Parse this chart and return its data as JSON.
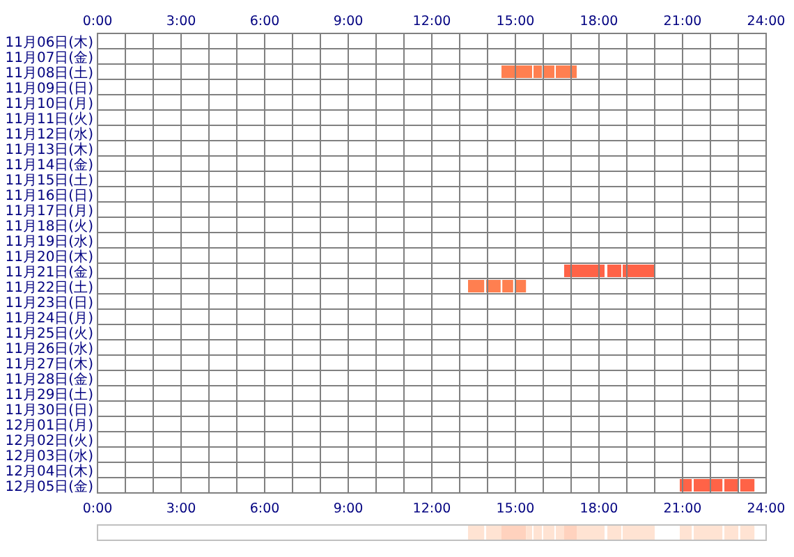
{
  "chart_data": [
    {
      "type": "bar",
      "orientation": "horizontal",
      "grid": true,
      "categories": [
        "11月06日(木)",
        "11月07日(金)",
        "11月08日(土)",
        "11月09日(日)",
        "11月10日(月)",
        "11月11日(火)",
        "11月12日(水)",
        "11月13日(木)",
        "11月14日(金)",
        "11月15日(土)",
        "11月16日(日)",
        "11月17日(月)",
        "11月18日(火)",
        "11月19日(水)",
        "11月20日(木)",
        "11月21日(金)",
        "11月22日(土)",
        "11月23日(日)",
        "11月24日(月)",
        "11月25日(火)",
        "11月26日(水)",
        "11月27日(木)",
        "11月28日(金)",
        "11月29日(土)",
        "11月30日(日)",
        "12月01日(月)",
        "12月02日(火)",
        "12月03日(水)",
        "12月04日(木)",
        "12月05日(金)"
      ],
      "series": [
        {
          "base": [
            null,
            null,
            14.5,
            null,
            null,
            null,
            null,
            null,
            null,
            null,
            null,
            null,
            null,
            null,
            null,
            16.75,
            13.3,
            null,
            null,
            null,
            null,
            null,
            null,
            null,
            null,
            null,
            null,
            null,
            null,
            20.9
          ],
          "values": [
            null,
            null,
            1.1,
            null,
            null,
            null,
            null,
            null,
            null,
            null,
            null,
            null,
            null,
            null,
            null,
            1.45,
            0.58,
            null,
            null,
            null,
            null,
            null,
            null,
            null,
            null,
            null,
            null,
            null,
            null,
            0.43
          ],
          "colors": [
            null,
            null,
            "#ff7f50",
            null,
            null,
            null,
            null,
            null,
            null,
            null,
            null,
            null,
            null,
            null,
            null,
            "#ff6347",
            "#ff7f50",
            null,
            null,
            null,
            null,
            null,
            null,
            null,
            null,
            null,
            null,
            null,
            null,
            "#ff6347"
          ]
        },
        {
          "base": [
            null,
            null,
            15.65,
            null,
            null,
            null,
            null,
            null,
            null,
            null,
            null,
            null,
            null,
            null,
            null,
            18.3,
            13.95,
            null,
            null,
            null,
            null,
            null,
            null,
            null,
            null,
            null,
            null,
            null,
            null,
            21.4
          ],
          "values": [
            null,
            null,
            0.3,
            null,
            null,
            null,
            null,
            null,
            null,
            null,
            null,
            null,
            null,
            null,
            null,
            0.5,
            0.52,
            null,
            null,
            null,
            null,
            null,
            null,
            null,
            null,
            null,
            null,
            null,
            null,
            1.03
          ],
          "colors": [
            null,
            null,
            "#ff7f50",
            null,
            null,
            null,
            null,
            null,
            null,
            null,
            null,
            null,
            null,
            null,
            null,
            "#ff6347",
            "#ff7f50",
            null,
            null,
            null,
            null,
            null,
            null,
            null,
            null,
            null,
            null,
            null,
            null,
            "#ff6347"
          ]
        },
        {
          "base": [
            null,
            null,
            16.0,
            null,
            null,
            null,
            null,
            null,
            null,
            null,
            null,
            null,
            null,
            null,
            null,
            18.85,
            14.53,
            null,
            null,
            null,
            null,
            null,
            null,
            null,
            null,
            null,
            null,
            null,
            null,
            22.5
          ],
          "values": [
            null,
            null,
            0.4,
            null,
            null,
            null,
            null,
            null,
            null,
            null,
            null,
            null,
            null,
            null,
            null,
            1.15,
            0.39,
            null,
            null,
            null,
            null,
            null,
            null,
            null,
            null,
            null,
            null,
            null,
            null,
            0.5
          ],
          "colors": [
            null,
            null,
            "#ff7f50",
            null,
            null,
            null,
            null,
            null,
            null,
            null,
            null,
            null,
            null,
            null,
            null,
            "#ff6347",
            "#ff7f50",
            null,
            null,
            null,
            null,
            null,
            null,
            null,
            null,
            null,
            null,
            null,
            null,
            "#ff6347"
          ]
        },
        {
          "base": [
            null,
            null,
            16.45,
            null,
            null,
            null,
            null,
            null,
            null,
            null,
            null,
            null,
            null,
            null,
            null,
            null,
            15.0,
            null,
            null,
            null,
            null,
            null,
            null,
            null,
            null,
            null,
            null,
            null,
            null,
            23.07
          ],
          "values": [
            null,
            null,
            0.75,
            null,
            null,
            null,
            null,
            null,
            null,
            null,
            null,
            null,
            null,
            null,
            null,
            null,
            0.38,
            null,
            null,
            null,
            null,
            null,
            null,
            null,
            null,
            null,
            null,
            null,
            null,
            0.51
          ],
          "colors": [
            null,
            null,
            "#ff7f50",
            null,
            null,
            null,
            null,
            null,
            null,
            null,
            null,
            null,
            null,
            null,
            null,
            null,
            "#ff7f50",
            null,
            null,
            null,
            null,
            null,
            null,
            null,
            null,
            null,
            null,
            null,
            null,
            "#ff6347"
          ]
        }
      ],
      "xlim": [
        0,
        24
      ],
      "xticks": [
        {
          "value": 0,
          "label": "0:00"
        },
        {
          "value": 3,
          "label": "3:00"
        },
        {
          "value": 6,
          "label": "6:00"
        },
        {
          "value": 9,
          "label": "9:00"
        },
        {
          "value": 12,
          "label": "12:00"
        },
        {
          "value": 15,
          "label": "15:00"
        },
        {
          "value": 18,
          "label": "18:00"
        },
        {
          "value": 21,
          "label": "21:00"
        },
        {
          "value": 24,
          "label": "24:00"
        }
      ],
      "x2lim": [
        0,
        24
      ],
      "x2ticks": [
        {
          "value": 0,
          "label": "0:00"
        },
        {
          "value": 3,
          "label": "3:00"
        },
        {
          "value": 6,
          "label": "6:00"
        },
        {
          "value": 9,
          "label": "9:00"
        },
        {
          "value": 12,
          "label": "12:00"
        },
        {
          "value": 15,
          "label": "15:00"
        },
        {
          "value": 18,
          "label": "18:00"
        },
        {
          "value": 21,
          "label": "21:00"
        },
        {
          "value": 24,
          "label": "24:00"
        }
      ]
    },
    {
      "type": "bar",
      "orientation": "horizontal",
      "categories": [
        null
      ],
      "xlim": [
        0,
        24
      ],
      "series": [
        {
          "base": [
            13.3
          ],
          "values": [
            0.58
          ],
          "color": "#ffe3d3"
        },
        {
          "base": [
            13.95
          ],
          "values": [
            0.55
          ],
          "color": "#ffe3d3"
        },
        {
          "base": [
            14.5
          ],
          "values": [
            0.88
          ],
          "color": "#ffd2be"
        },
        {
          "base": [
            15.38
          ],
          "values": [
            0.22
          ],
          "color": "#ffe3d3"
        },
        {
          "base": [
            15.65
          ],
          "values": [
            0.3
          ],
          "color": "#ffe3d3"
        },
        {
          "base": [
            16.0
          ],
          "values": [
            0.4
          ],
          "color": "#ffe3d3"
        },
        {
          "base": [
            16.45
          ],
          "values": [
            0.3
          ],
          "color": "#ffe3d3"
        },
        {
          "base": [
            16.75
          ],
          "values": [
            0.45
          ],
          "color": "#ffd2be"
        },
        {
          "base": [
            17.2
          ],
          "values": [
            1.0
          ],
          "color": "#ffe3d3"
        },
        {
          "base": [
            18.3
          ],
          "values": [
            0.5
          ],
          "color": "#ffe3d3"
        },
        {
          "base": [
            18.85
          ],
          "values": [
            1.15
          ],
          "color": "#ffe3d3"
        },
        {
          "base": [
            20.9
          ],
          "values": [
            0.43
          ],
          "color": "#ffe3d3"
        },
        {
          "base": [
            21.4
          ],
          "values": [
            1.03
          ],
          "color": "#ffe3d3"
        },
        {
          "base": [
            22.5
          ],
          "values": [
            0.5
          ],
          "color": "#ffe3d3"
        },
        {
          "base": [
            23.07
          ],
          "values": [
            0.51
          ],
          "color": "#ffe3d3"
        }
      ]
    }
  ]
}
